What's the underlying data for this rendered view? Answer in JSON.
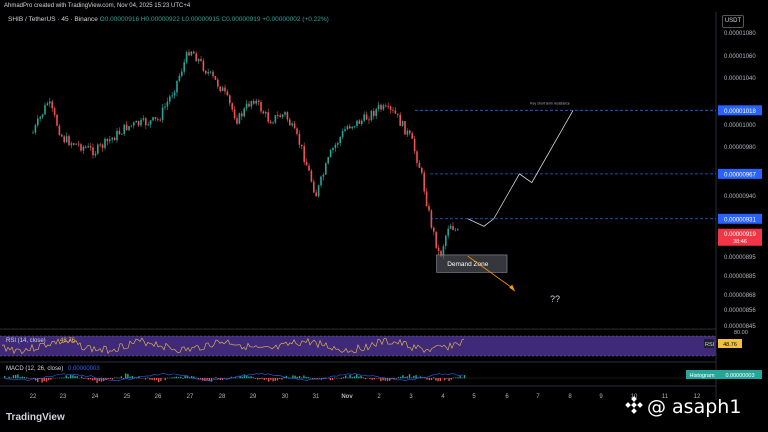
{
  "header": {
    "author_line": "AhmadPro created with TradingView.com, Nov 04, 2025 15:23 UTC+4"
  },
  "symbol": {
    "title": "SHIB / TetherUS · 45 · Binance",
    "ohlc": "O0.00000916 H0.00000922 L0.00000915 C0.00000919 +0.00000002 (+0.22%)"
  },
  "currency": "USDT",
  "colors": {
    "up": "#26a69a",
    "down": "#ef5350",
    "accent": "#2962ff",
    "rsi": "#f0c040",
    "macd": "#2962ff"
  },
  "chart_data": {
    "type": "candlestick",
    "price_ticks": [
      "0.00001080",
      "0.00001060",
      "0.00001040",
      "0.00001000",
      "0.00000980",
      "0.00000960",
      "0.00000940",
      "0.00000925",
      "0.00000910",
      "0.00000895",
      "0.00000885",
      "0.00000868",
      "0.00000856",
      "0.00000845"
    ],
    "x_ticks": [
      "22",
      "23",
      "24",
      "25",
      "26",
      "27",
      "28",
      "29",
      "30",
      "31",
      "Nov",
      "2",
      "3",
      "4",
      "5",
      "6",
      "7",
      "8",
      "9",
      "10",
      "11",
      "12"
    ],
    "price_path": [
      {
        "x": "22",
        "price": 1e-05
      },
      {
        "x": "22.5",
        "price": 1.025e-05
      },
      {
        "x": "23",
        "price": 9.95e-06
      },
      {
        "x": "24",
        "price": 9.85e-06
      },
      {
        "x": "25",
        "price": 1.005e-05
      },
      {
        "x": "26",
        "price": 1.01e-05
      },
      {
        "x": "26.5",
        "price": 1.035e-05
      },
      {
        "x": "27",
        "price": 1.068e-05
      },
      {
        "x": "27.5",
        "price": 1.05e-05
      },
      {
        "x": "28",
        "price": 1.035e-05
      },
      {
        "x": "28.5",
        "price": 1.01e-05
      },
      {
        "x": "29",
        "price": 1.028e-05
      },
      {
        "x": "29.5",
        "price": 1.01e-05
      },
      {
        "x": "30",
        "price": 1.015e-05
      },
      {
        "x": "30.5",
        "price": 9.9e-06
      },
      {
        "x": "31",
        "price": 9.5e-06
      },
      {
        "x": "31.5",
        "price": 9.85e-06
      },
      {
        "x": "Nov",
        "price": 1.005e-05
      },
      {
        "x": "1.5",
        "price": 1.01e-05
      },
      {
        "x": "2",
        "price": 1.02e-05
      },
      {
        "x": "2.5",
        "price": 1.015e-05
      },
      {
        "x": "3",
        "price": 9.95e-06
      },
      {
        "x": "3.3",
        "price": 9.7e-06
      },
      {
        "x": "3.6",
        "price": 9.3e-06
      },
      {
        "x": "3.9",
        "price": 9e-06
      },
      {
        "x": "4.2",
        "price": 9.28e-06
      },
      {
        "x": "4.5",
        "price": 9.19e-06
      }
    ],
    "levels": [
      {
        "label": "0.00001018",
        "price": 1.018e-05,
        "color": "#2962ff",
        "note": "Key short term resistance"
      },
      {
        "label": "0.00000967",
        "price": 9.67e-06,
        "color": "#2962ff"
      },
      {
        "label": "0.00000931",
        "price": 9.31e-06,
        "color": "#2962ff"
      }
    ],
    "current_price": {
      "label": "0.00000919",
      "countdown": "38:46",
      "color": "#f23645"
    },
    "demand_zone": {
      "label": "Demand Zone",
      "from": "3.8",
      "to": "6",
      "low": 8.88e-06,
      "high": 9.02e-06
    },
    "bull_path": [
      {
        "x": "4.8",
        "price": 9.31e-06
      },
      {
        "x": "5.3",
        "price": 9.25e-06
      },
      {
        "x": "5.6",
        "price": 9.31e-06
      },
      {
        "x": "6.4",
        "price": 9.67e-06
      },
      {
        "x": "6.8",
        "price": 9.6e-06
      },
      {
        "x": "8.1",
        "price": 1.018e-05
      }
    ],
    "bear_path": [
      {
        "x": "4.8",
        "price": 9.01e-06
      },
      {
        "x": "6.2",
        "price": 8.75e-06
      }
    ],
    "question": "??",
    "rsi": {
      "label": "RSI (14, close)",
      "value": "48.76",
      "levels": [
        "80.00",
        "48.76"
      ]
    },
    "macd": {
      "label": "MACD (12, 26, close)",
      "value": "0.00000003",
      "histogram_label": "Histogram",
      "histogram_value": "0.00000003"
    }
  },
  "footer": {
    "brand": "TradingView",
    "watermark": "@ asaph1"
  }
}
